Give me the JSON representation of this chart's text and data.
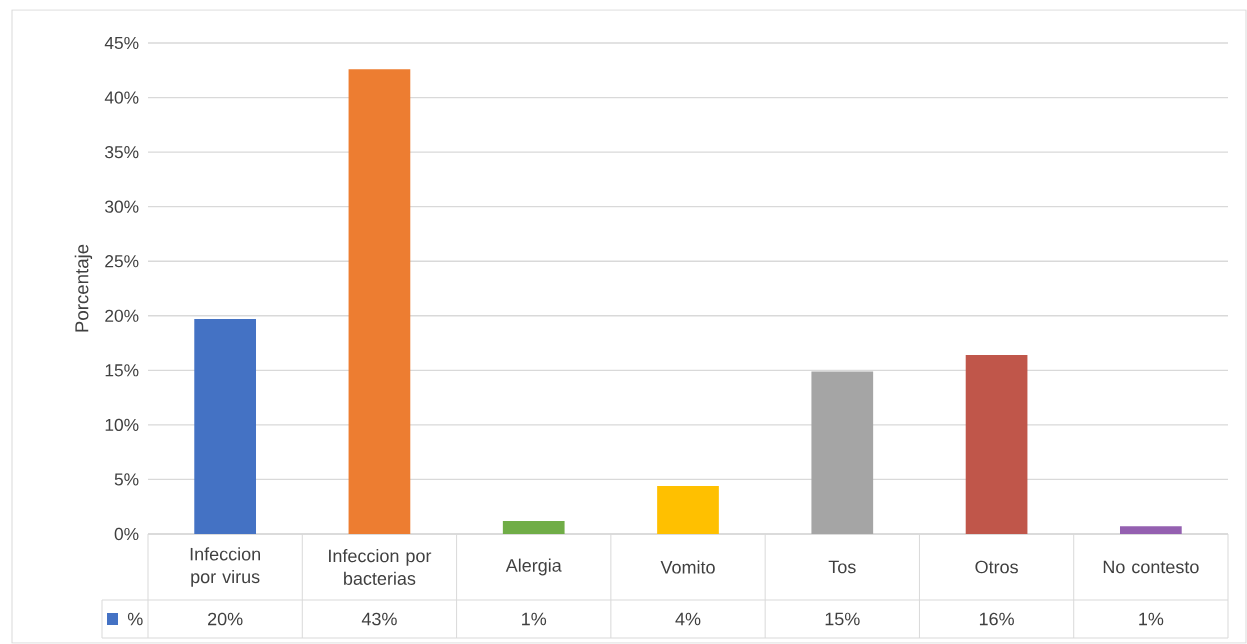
{
  "chart_data": {
    "type": "bar",
    "ylabel": "Porcentaje",
    "categories": [
      "Infeccion por virus",
      "Infeccion por bacterias",
      "Alergia",
      "Vomito",
      "Tos",
      "Otros",
      "No contesto"
    ],
    "series": [
      {
        "name": "%",
        "color": "#4472c4",
        "values": [
          19.7,
          42.6,
          1.2,
          4.4,
          14.9,
          16.4,
          0.7
        ],
        "colors": [
          "#4472c4",
          "#ed7d31",
          "#70ad47",
          "#ffc000",
          "#a5a5a5",
          "#c0564a",
          "#9460b0"
        ],
        "value_labels": [
          "20%",
          "43%",
          "1%",
          "4%",
          "15%",
          "16%",
          "1%"
        ]
      }
    ],
    "ylim": [
      0,
      45
    ],
    "yticks": [
      {
        "value": 0,
        "label": "0%"
      },
      {
        "value": 5,
        "label": "5%"
      },
      {
        "value": 10,
        "label": "10%"
      },
      {
        "value": 15,
        "label": "15%"
      },
      {
        "value": 20,
        "label": "20%"
      },
      {
        "value": 25,
        "label": "25%"
      },
      {
        "value": 30,
        "label": "30%"
      },
      {
        "value": 35,
        "label": "35%"
      },
      {
        "value": 40,
        "label": "40%"
      },
      {
        "value": 45,
        "label": "45%"
      }
    ],
    "grid": "y",
    "legend": "bottom"
  }
}
